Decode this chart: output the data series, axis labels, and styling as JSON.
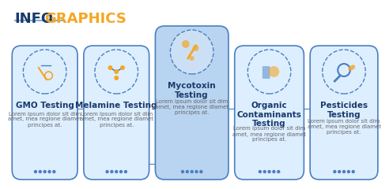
{
  "title_info": "INFOGRAPHICS",
  "title_info_color1": "#1a3a6b",
  "title_info_color2": "#f5a623",
  "title_underline_color": "#7ab3e0",
  "bg_color": "#ffffff",
  "card_bg_color": "#ddeeff",
  "card_border_color": "#4a7fc1",
  "highlight_card_index": 2,
  "highlight_card_bg": "#b8d4f0",
  "cards": [
    {
      "title": "GMO Testing",
      "body": "Lorem ipsum dolor sit dim\namet, mea regione dlamet\nprincipes at.",
      "dots": 5,
      "top": false
    },
    {
      "title": "Melamine Testing",
      "body": "Lorem ipsum dolor sit dim\namet, mea regione dlamet\nprincipes at.",
      "dots": 5,
      "top": false
    },
    {
      "title": "Mycotoxin\nTesting",
      "body": "Lorem ipsum dolor sit dim\namet, mea regione dlamet\nprincipes at.",
      "dots": 5,
      "top": true
    },
    {
      "title": "Organic\nContaminants\nTesting",
      "body": "Lorem ipsum dolor sit dim\namet, mea regione dlamet\nprincipes at.",
      "dots": 5,
      "top": false
    },
    {
      "title": "Pesticides\nTesting",
      "body": "Lorem ipsum dolor sit dim\namet, mea regione dlamet\nprincipes at.",
      "dots": 5,
      "top": false
    }
  ],
  "title_fontsize": 13,
  "card_title_fontsize": 7.5,
  "card_body_fontsize": 5.0,
  "card_title_color": "#1a3a6b",
  "card_body_color": "#666666",
  "dot_color": "#4a7fc1",
  "icon_color": "#f5a623",
  "icon_border_color": "#4a7fc1"
}
